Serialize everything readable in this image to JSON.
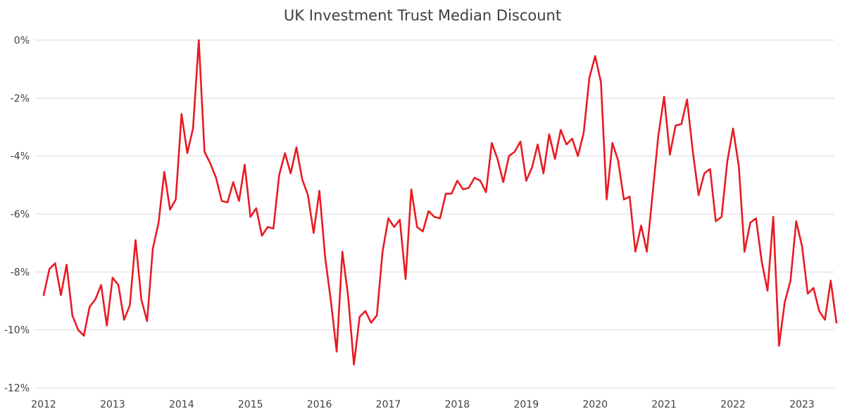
{
  "chart_data": {
    "type": "line",
    "title": "UK Investment Trust Median Discount",
    "xlabel": "",
    "ylabel": "",
    "ylim": [
      -12,
      0
    ],
    "yticks": [
      "0%",
      "-2%",
      "-4%",
      "-6%",
      "-8%",
      "-10%",
      "-12%"
    ],
    "xticks": [
      "2012",
      "2013",
      "2014",
      "2015",
      "2016",
      "2017",
      "2018",
      "2019",
      "2020",
      "2021",
      "2022",
      "2023"
    ],
    "x_range": [
      "2012-01",
      "2023-07"
    ],
    "grid": "horizontal",
    "line_color": "#e81b23",
    "series": [
      {
        "x": [
          "2012-01",
          "2012-02",
          "2012-03",
          "2012-04",
          "2012-05",
          "2012-06",
          "2012-07",
          "2012-08",
          "2012-09",
          "2012-10",
          "2012-11",
          "2012-12",
          "2013-01",
          "2013-02",
          "2013-03",
          "2013-04",
          "2013-05",
          "2013-06",
          "2013-07",
          "2013-08",
          "2013-09",
          "2013-10",
          "2013-11",
          "2013-12",
          "2014-01",
          "2014-02",
          "2014-03",
          "2014-04",
          "2014-05",
          "2014-06",
          "2014-07",
          "2014-08",
          "2014-09",
          "2014-10",
          "2014-11",
          "2014-12",
          "2015-01",
          "2015-02",
          "2015-03",
          "2015-04",
          "2015-05",
          "2015-06",
          "2015-07",
          "2015-08",
          "2015-09",
          "2015-10",
          "2015-11",
          "2015-12",
          "2016-01",
          "2016-02",
          "2016-03",
          "2016-04",
          "2016-05",
          "2016-06",
          "2016-07",
          "2016-08",
          "2016-09",
          "2016-10",
          "2016-11",
          "2016-12",
          "2017-01",
          "2017-02",
          "2017-03",
          "2017-04",
          "2017-05",
          "2017-06",
          "2017-07",
          "2017-08",
          "2017-09",
          "2017-10",
          "2017-11",
          "2017-12",
          "2018-01",
          "2018-02",
          "2018-03",
          "2018-04",
          "2018-05",
          "2018-06",
          "2018-07",
          "2018-08",
          "2018-09",
          "2018-10",
          "2018-11",
          "2018-12",
          "2019-01",
          "2019-02",
          "2019-03",
          "2019-04",
          "2019-05",
          "2019-06",
          "2019-07",
          "2019-08",
          "2019-09",
          "2019-10",
          "2019-11",
          "2019-12",
          "2020-01",
          "2020-02",
          "2020-03",
          "2020-04",
          "2020-05",
          "2020-06",
          "2020-07",
          "2020-08",
          "2020-09",
          "2020-10",
          "2020-11",
          "2020-12",
          "2021-01",
          "2021-02",
          "2021-03",
          "2021-04",
          "2021-05",
          "2021-06",
          "2021-07",
          "2021-08",
          "2021-09",
          "2021-10",
          "2021-11",
          "2021-12",
          "2022-01",
          "2022-02",
          "2022-03",
          "2022-04",
          "2022-05",
          "2022-06",
          "2022-07",
          "2022-08",
          "2022-09",
          "2022-10",
          "2022-11",
          "2022-12",
          "2023-01",
          "2023-02",
          "2023-03",
          "2023-04",
          "2023-05",
          "2023-06",
          "2023-07"
        ],
        "values": [
          -8.8,
          -7.9,
          -7.7,
          -8.8,
          -7.75,
          -9.5,
          -10.0,
          -10.2,
          -9.2,
          -8.95,
          -8.45,
          -9.85,
          -8.2,
          -8.45,
          -9.65,
          -9.15,
          -6.9,
          -8.95,
          -9.7,
          -7.2,
          -6.3,
          -4.55,
          -5.85,
          -5.5,
          -2.55,
          -3.9,
          -3.05,
          0.0,
          -3.85,
          -4.25,
          -4.75,
          -5.55,
          -5.6,
          -4.9,
          -5.55,
          -4.3,
          -6.1,
          -5.8,
          -6.75,
          -6.45,
          -6.5,
          -4.65,
          -3.9,
          -4.6,
          -3.7,
          -4.8,
          -5.35,
          -6.65,
          -5.2,
          -7.5,
          -9.0,
          -10.75,
          -7.3,
          -8.85,
          -11.2,
          -9.55,
          -9.35,
          -9.75,
          -9.5,
          -7.3,
          -6.15,
          -6.45,
          -6.2,
          -8.25,
          -5.15,
          -6.45,
          -6.6,
          -5.9,
          -6.1,
          -6.15,
          -5.3,
          -5.3,
          -4.85,
          -5.15,
          -5.1,
          -4.75,
          -4.85,
          -5.25,
          -3.55,
          -4.1,
          -4.9,
          -4.0,
          -3.85,
          -3.5,
          -4.85,
          -4.4,
          -3.6,
          -4.6,
          -3.25,
          -4.1,
          -3.1,
          -3.6,
          -3.4,
          -4.0,
          -3.2,
          -1.3,
          -0.55,
          -1.45,
          -5.5,
          -3.55,
          -4.15,
          -5.5,
          -5.4,
          -7.3,
          -6.4,
          -7.3,
          -5.3,
          -3.3,
          -1.95,
          -3.95,
          -2.95,
          -2.9,
          -2.05,
          -3.85,
          -5.35,
          -4.6,
          -4.45,
          -6.25,
          -6.1,
          -4.2,
          -3.05,
          -4.35,
          -7.3,
          -6.3,
          -6.15,
          -7.65,
          -8.65,
          -6.1,
          -10.55,
          -9.05,
          -8.3,
          -6.25,
          -7.1,
          -8.75,
          -8.55,
          -9.35,
          -9.65,
          -8.3,
          -9.75
        ]
      }
    ]
  }
}
